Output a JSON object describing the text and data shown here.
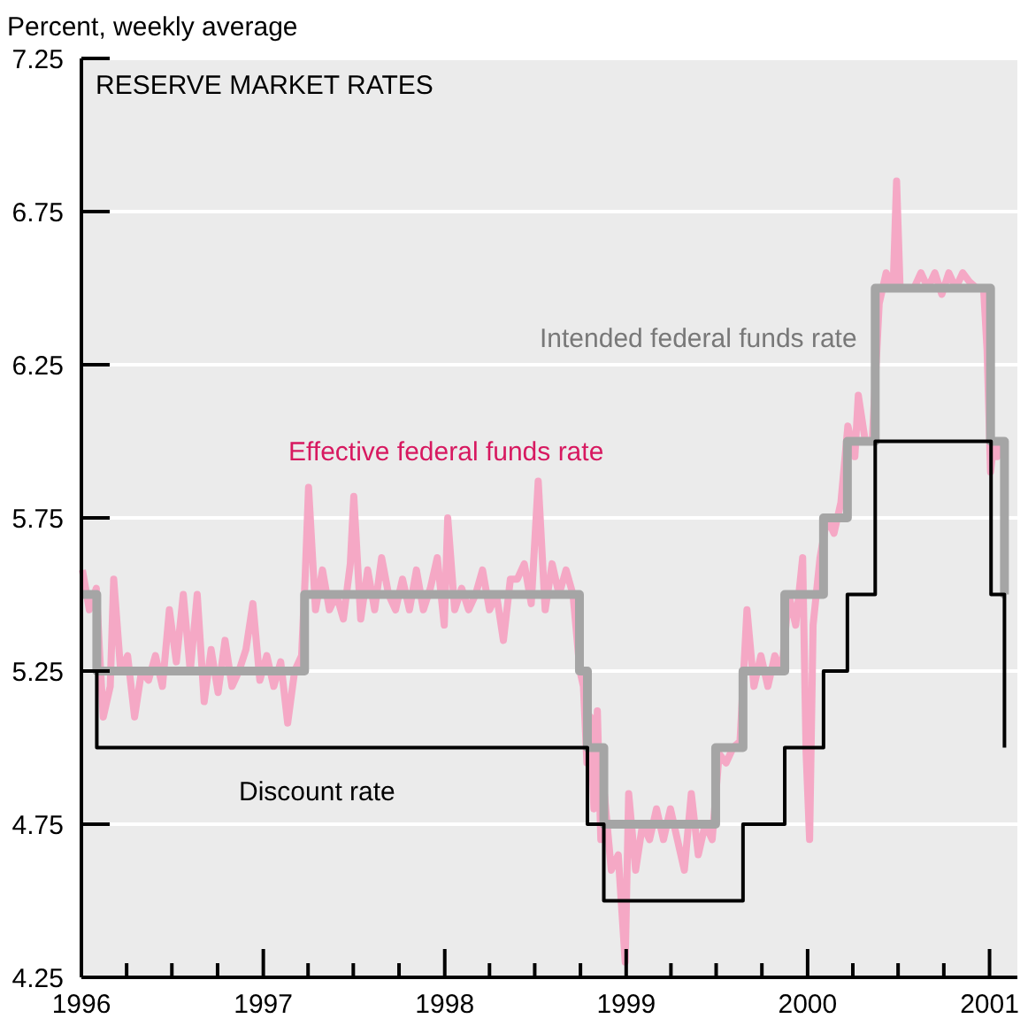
{
  "chart_data": {
    "type": "step",
    "title": "RESERVE MARKET RATES",
    "ylabel": "Percent, weekly average",
    "legend": false,
    "grid": "y",
    "xlim": [
      "1996-01-01",
      "2001-02-26"
    ],
    "xticks": [
      {
        "value": "1996-01-01",
        "label": "1996"
      },
      {
        "value": "1996-04-01",
        "label": null
      },
      {
        "value": "1996-07-01",
        "label": null
      },
      {
        "value": "1996-10-01",
        "label": null
      },
      {
        "value": "1997-01-01",
        "label": "1997"
      },
      {
        "value": "1997-04-01",
        "label": null
      },
      {
        "value": "1997-07-01",
        "label": null
      },
      {
        "value": "1997-10-01",
        "label": null
      },
      {
        "value": "1998-01-01",
        "label": "1998"
      },
      {
        "value": "1998-04-01",
        "label": null
      },
      {
        "value": "1998-07-01",
        "label": null
      },
      {
        "value": "1998-10-01",
        "label": null
      },
      {
        "value": "1999-01-01",
        "label": "1999"
      },
      {
        "value": "1999-04-01",
        "label": null
      },
      {
        "value": "1999-07-01",
        "label": null
      },
      {
        "value": "1999-10-01",
        "label": null
      },
      {
        "value": "2000-01-01",
        "label": "2000"
      },
      {
        "value": "2000-04-01",
        "label": null
      },
      {
        "value": "2000-07-01",
        "label": null
      },
      {
        "value": "2000-10-01",
        "label": null
      },
      {
        "value": "2001-01-01",
        "label": "2001"
      }
    ],
    "ylim": [
      4.25,
      7.25
    ],
    "yticks": [
      4.25,
      4.75,
      5.25,
      5.75,
      6.25,
      6.75,
      7.25
    ],
    "series": [
      {
        "name": "Effective federal funds rate",
        "type": "line",
        "color": "#f5a8c5",
        "x": [
          "1996-01-03",
          "1996-01-17",
          "1996-01-31",
          "1996-02-07",
          "1996-02-14",
          "1996-02-28",
          "1996-03-06",
          "1996-03-20",
          "1996-04-03",
          "1996-04-17",
          "1996-05-01",
          "1996-05-15",
          "1996-05-29",
          "1996-06-12",
          "1996-06-26",
          "1996-07-10",
          "1996-07-24",
          "1996-08-07",
          "1996-08-21",
          "1996-09-04",
          "1996-09-18",
          "1996-10-02",
          "1996-10-16",
          "1996-10-30",
          "1996-11-13",
          "1996-11-27",
          "1996-12-11",
          "1996-12-25",
          "1997-01-08",
          "1997-01-22",
          "1997-02-05",
          "1997-02-19",
          "1997-03-05",
          "1997-03-19",
          "1997-03-26",
          "1997-04-02",
          "1997-04-16",
          "1997-04-30",
          "1997-05-14",
          "1997-05-28",
          "1997-06-11",
          "1997-06-25",
          "1997-07-02",
          "1997-07-16",
          "1997-07-30",
          "1997-08-13",
          "1997-08-27",
          "1997-09-10",
          "1997-09-24",
          "1997-10-08",
          "1997-10-22",
          "1997-11-05",
          "1997-11-19",
          "1997-12-03",
          "1997-12-17",
          "1997-12-31",
          "1998-01-07",
          "1998-01-21",
          "1998-02-04",
          "1998-02-18",
          "1998-03-04",
          "1998-03-18",
          "1998-04-01",
          "1998-04-15",
          "1998-04-29",
          "1998-05-13",
          "1998-05-27",
          "1998-06-10",
          "1998-06-24",
          "1998-07-08",
          "1998-07-22",
          "1998-08-05",
          "1998-08-19",
          "1998-09-02",
          "1998-09-16",
          "1998-09-30",
          "1998-10-07",
          "1998-10-14",
          "1998-10-21",
          "1998-10-28",
          "1998-11-04",
          "1998-11-11",
          "1998-11-18",
          "1998-12-02",
          "1998-12-16",
          "1998-12-30",
          "1999-01-06",
          "1999-01-20",
          "1999-02-03",
          "1999-02-17",
          "1999-03-03",
          "1999-03-17",
          "1999-03-31",
          "1999-04-14",
          "1999-04-28",
          "1999-05-12",
          "1999-05-26",
          "1999-06-09",
          "1999-06-23",
          "1999-07-07",
          "1999-07-21",
          "1999-08-04",
          "1999-08-18",
          "1999-09-01",
          "1999-09-15",
          "1999-09-29",
          "1999-10-13",
          "1999-10-27",
          "1999-11-10",
          "1999-11-24",
          "1999-12-08",
          "1999-12-22",
          "1999-12-29",
          "2000-01-05",
          "2000-01-12",
          "2000-01-26",
          "2000-02-09",
          "2000-02-23",
          "2000-03-08",
          "2000-03-22",
          "2000-04-05",
          "2000-04-12",
          "2000-04-26",
          "2000-05-10",
          "2000-05-24",
          "2000-06-07",
          "2000-06-21",
          "2000-06-28",
          "2000-07-05",
          "2000-07-19",
          "2000-08-02",
          "2000-08-16",
          "2000-08-30",
          "2000-09-13",
          "2000-09-27",
          "2000-10-11",
          "2000-10-25",
          "2000-11-08",
          "2000-11-22",
          "2000-12-06",
          "2000-12-20",
          "2000-12-27",
          "2001-01-03",
          "2001-01-10",
          "2001-01-17",
          "2001-01-24"
        ],
        "values": [
          5.58,
          5.45,
          5.52,
          5.3,
          5.1,
          5.2,
          5.55,
          5.25,
          5.3,
          5.1,
          5.25,
          5.22,
          5.3,
          5.2,
          5.45,
          5.28,
          5.5,
          5.25,
          5.5,
          5.15,
          5.32,
          5.18,
          5.35,
          5.2,
          5.25,
          5.32,
          5.47,
          5.22,
          5.3,
          5.2,
          5.28,
          5.08,
          5.25,
          5.3,
          5.55,
          5.85,
          5.45,
          5.58,
          5.45,
          5.5,
          5.42,
          5.6,
          5.82,
          5.42,
          5.58,
          5.45,
          5.62,
          5.5,
          5.45,
          5.55,
          5.45,
          5.58,
          5.45,
          5.52,
          5.62,
          5.4,
          5.75,
          5.45,
          5.52,
          5.45,
          5.5,
          5.58,
          5.45,
          5.5,
          5.35,
          5.55,
          5.55,
          5.6,
          5.47,
          5.87,
          5.45,
          5.6,
          5.5,
          5.58,
          5.5,
          5.25,
          5.2,
          4.95,
          5.1,
          4.8,
          5.12,
          4.7,
          4.85,
          4.6,
          4.65,
          4.3,
          4.85,
          4.6,
          4.75,
          4.7,
          4.8,
          4.7,
          4.8,
          4.7,
          4.6,
          4.85,
          4.65,
          4.75,
          4.7,
          4.98,
          4.95,
          5.0,
          5.02,
          5.45,
          5.2,
          5.3,
          5.2,
          5.3,
          5.25,
          5.5,
          5.4,
          5.62,
          4.98,
          4.7,
          5.4,
          5.62,
          5.75,
          5.7,
          5.8,
          6.05,
          5.95,
          6.15,
          6.0,
          6.0,
          6.45,
          6.55,
          6.5,
          6.85,
          6.5,
          6.5,
          6.5,
          6.55,
          6.5,
          6.55,
          6.48,
          6.55,
          6.5,
          6.55,
          6.52,
          6.5,
          6.5,
          6.3,
          5.9,
          6.0,
          5.95,
          6.0
        ]
      },
      {
        "name": "Intended federal funds rate",
        "color": "#a5a5a5",
        "x": [
          "1996-01-01",
          "1996-02-01",
          "1997-03-25",
          "1998-09-29",
          "1998-10-15",
          "1998-11-17",
          "1999-06-30",
          "1999-08-24",
          "1999-11-16",
          "2000-02-02",
          "2000-03-21",
          "2000-05-16",
          "2001-01-03",
          "2001-01-31",
          "2001-02-03"
        ],
        "values": [
          5.5,
          5.25,
          5.5,
          5.25,
          5.0,
          4.75,
          5.0,
          5.25,
          5.5,
          5.75,
          6.0,
          6.5,
          6.0,
          5.5,
          5.5
        ]
      },
      {
        "name": "Discount rate",
        "color": "#000000",
        "x": [
          "1996-01-01",
          "1996-02-01",
          "1998-10-15",
          "1998-11-17",
          "1999-08-24",
          "1999-11-16",
          "2000-02-02",
          "2000-03-21",
          "2000-05-16",
          "2001-01-04",
          "2001-01-31"
        ],
        "values": [
          5.25,
          5.0,
          4.75,
          4.5,
          4.75,
          5.0,
          5.25,
          5.5,
          6.0,
          5.5,
          5.0
        ]
      }
    ]
  }
}
